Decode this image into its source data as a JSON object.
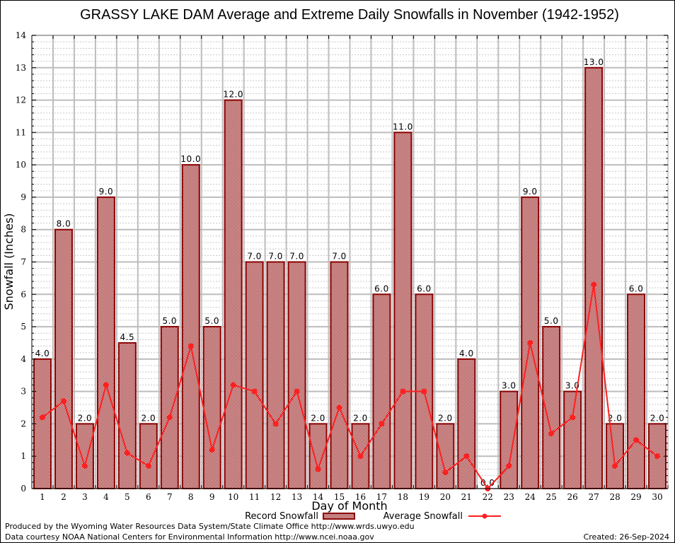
{
  "chart_data": {
    "type": "bar",
    "title": "GRASSY LAKE DAM Average and Extreme Daily Snowfalls in November (1942-1952)",
    "xlabel": "Day of Month",
    "ylabel": "Snowfall (Inches)",
    "ylim": [
      0,
      14
    ],
    "yticks": [
      "0",
      "1",
      "2",
      "3",
      "4",
      "5",
      "6",
      "7",
      "8",
      "9",
      "10",
      "11",
      "12",
      "13",
      "14"
    ],
    "categories": [
      "1",
      "2",
      "3",
      "4",
      "5",
      "6",
      "7",
      "8",
      "9",
      "10",
      "11",
      "12",
      "13",
      "14",
      "15",
      "16",
      "17",
      "18",
      "19",
      "20",
      "21",
      "22",
      "23",
      "24",
      "25",
      "26",
      "27",
      "28",
      "29",
      "30"
    ],
    "grid": true,
    "legend_position": "bottom-center",
    "series": [
      {
        "name": "Record Snowfall",
        "type": "bar",
        "color": "#8b0000",
        "values": [
          4.0,
          8.0,
          2.0,
          9.0,
          4.5,
          2.0,
          5.0,
          10.0,
          5.0,
          12.0,
          7.0,
          7.0,
          7.0,
          2.0,
          7.0,
          2.0,
          6.0,
          11.0,
          6.0,
          2.0,
          4.0,
          0.0,
          3.0,
          9.0,
          5.0,
          3.0,
          13.0,
          2.0,
          6.0,
          2.0
        ],
        "labels": [
          "4.0",
          "8.0",
          "2.0",
          "9.0",
          "4.5",
          "2.0",
          "5.0",
          "10.0",
          "5.0",
          "12.0",
          "7.0",
          "7.0",
          "7.0",
          "2.0",
          "7.0",
          "2.0",
          "6.0",
          "11.0",
          "6.0",
          "2.0",
          "4.0",
          "0.0",
          "3.0",
          "9.0",
          "5.0",
          "3.0",
          "13.0",
          "2.0",
          "6.0",
          "2.0"
        ]
      },
      {
        "name": "Average Snowfall",
        "type": "line",
        "color": "#ff2020",
        "values": [
          2.2,
          2.7,
          0.7,
          3.2,
          1.1,
          0.7,
          2.2,
          4.4,
          1.2,
          3.2,
          3.0,
          2.0,
          3.0,
          0.6,
          2.5,
          1.0,
          2.0,
          3.0,
          3.0,
          0.5,
          1.0,
          0.0,
          0.7,
          4.5,
          1.7,
          2.2,
          6.3,
          0.7,
          1.5,
          1.0
        ]
      }
    ]
  },
  "footer": {
    "line1": "Produced by the Wyoming Water Resources Data System/State Climate Office http://www.wrds.uwyo.edu",
    "line2": "Data courtesy NOAA National Centers for Environmental Information http://www.ncei.noaa.gov",
    "created": "Created:  26-Sep-2024"
  }
}
